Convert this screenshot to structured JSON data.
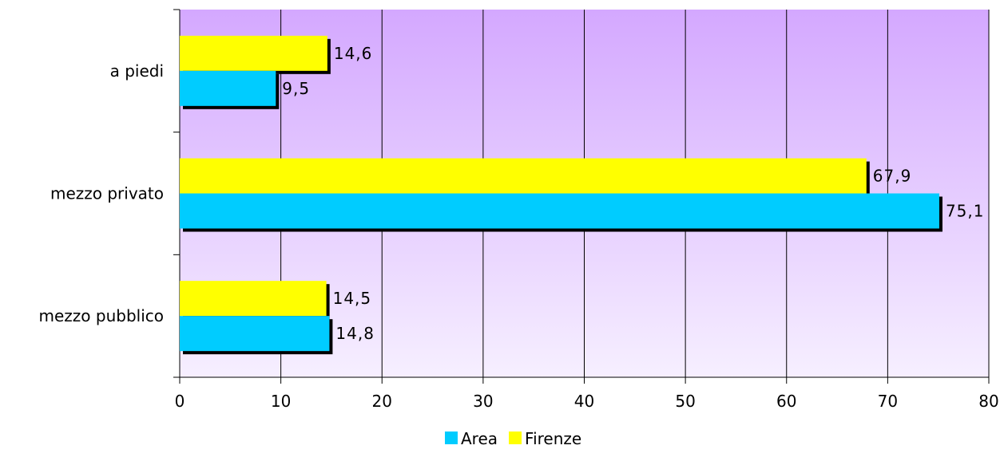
{
  "chart_data": {
    "type": "bar",
    "orientation": "horizontal",
    "categories": [
      "a piedi",
      "mezzo privato",
      "mezzo pubblico"
    ],
    "series": [
      {
        "name": "Firenze",
        "values": [
          14.6,
          67.9,
          14.5
        ],
        "labels": [
          "14,6",
          "67,9",
          "14,5"
        ],
        "color": "#ffff00"
      },
      {
        "name": "Area",
        "values": [
          9.5,
          75.1,
          14.8
        ],
        "labels": [
          "9,5",
          "75,1",
          "14,8"
        ],
        "color": "#00ccff"
      }
    ],
    "xlim": [
      0,
      80
    ],
    "xticks": [
      0,
      10,
      20,
      30,
      40,
      50,
      60,
      70,
      80
    ],
    "grid": true,
    "legend": "bottom",
    "legend_order": [
      "Area",
      "Firenze"
    ],
    "background_gradient": [
      "#d4a8ff",
      "#f6efff"
    ]
  }
}
